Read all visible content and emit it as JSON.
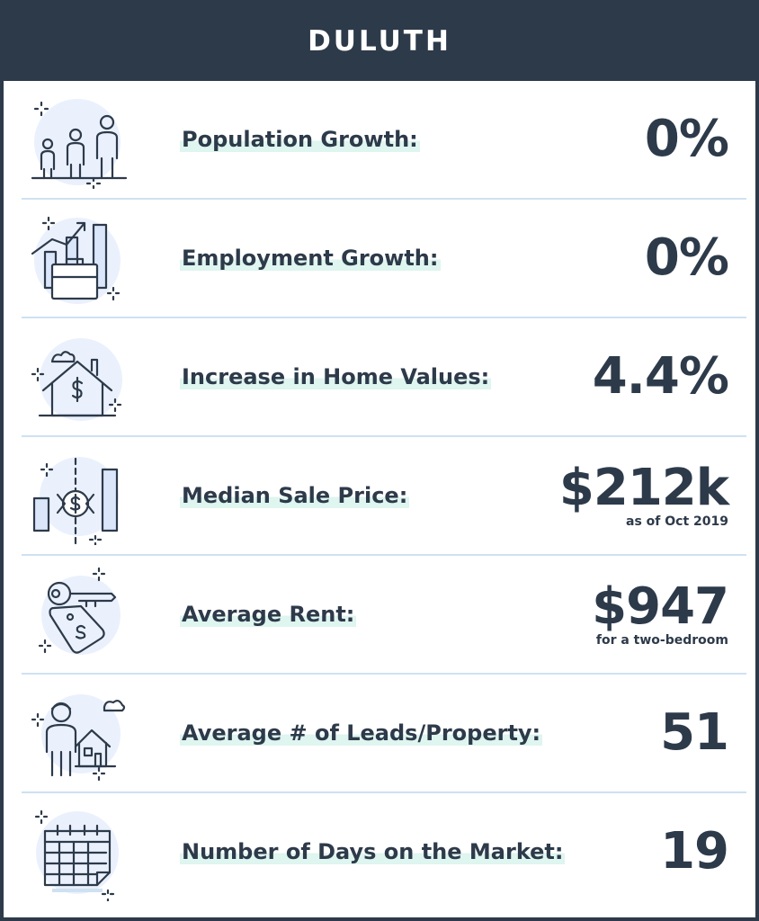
{
  "title": "DULUTH",
  "rows": [
    {
      "label": "Population Growth:",
      "value": "0%",
      "note": "",
      "icon": "family-icon"
    },
    {
      "label": "Employment Growth:",
      "value": "0%",
      "note": "",
      "icon": "briefcase-chart-icon"
    },
    {
      "label": "Increase in Home Values:",
      "value": "4.4%",
      "note": "",
      "icon": "house-dollar-icon"
    },
    {
      "label": "Median Sale Price:",
      "value": "$212k",
      "note": "as of Oct 2019",
      "icon": "bar-chart-dollar-icon"
    },
    {
      "label": "Average Rent:",
      "value": "$947",
      "note": "for a two-bedroom",
      "icon": "key-tag-icon"
    },
    {
      "label": "Average # of Leads/Property:",
      "value": "51",
      "note": "",
      "icon": "person-house-icon"
    },
    {
      "label": "Number of Days on the Market:",
      "value": "19",
      "note": "",
      "icon": "calendar-icon"
    }
  ],
  "colors": {
    "header": "#2d3a4a",
    "text": "#2d3a4a",
    "divider": "#cfe1f2",
    "highlight": "#dff5ef",
    "icon_fill": "#dbe6fb"
  }
}
